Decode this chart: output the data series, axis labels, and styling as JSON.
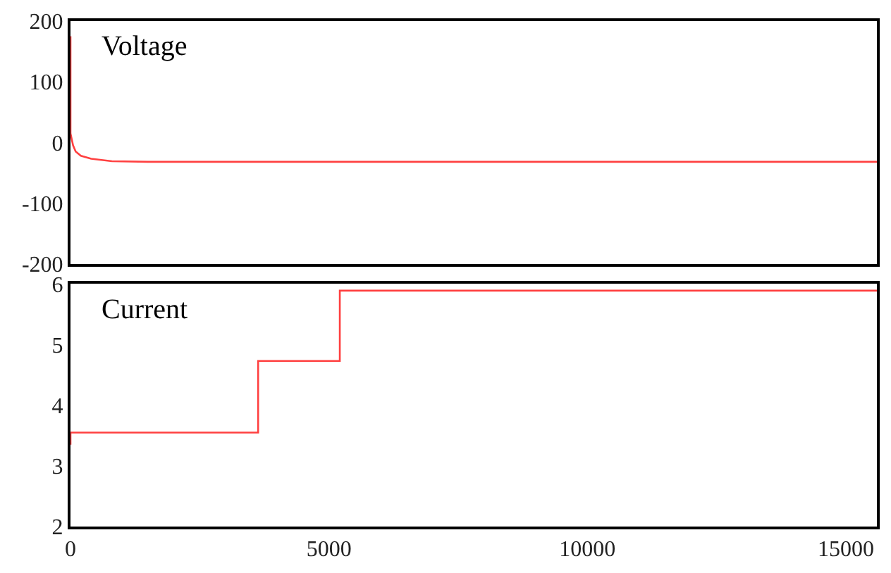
{
  "chart_data": [
    {
      "type": "line",
      "title": "Voltage",
      "x": [
        0,
        0,
        0,
        50,
        100,
        200,
        400,
        800,
        1500,
        15600
      ],
      "series": [
        {
          "color": "#ff4040",
          "values": [
            175,
            50,
            15,
            -5,
            -15,
            -22,
            -27,
            -31,
            -32,
            -32
          ]
        }
      ],
      "xlim": [
        0,
        15600
      ],
      "ylim": [
        -200,
        200
      ],
      "yticks": [
        -200,
        -100,
        0,
        100,
        200
      ],
      "tick_labels": "y"
    },
    {
      "type": "step",
      "title": "Current",
      "x": [
        0,
        0,
        3630,
        5210,
        15600
      ],
      "series": [
        {
          "color": "#ff4040",
          "values": [
            3.35,
            3.55,
            4.73,
            5.89,
            5.89
          ]
        }
      ],
      "xlim": [
        0,
        15600
      ],
      "xticks": [
        0,
        5000,
        10000,
        15000
      ],
      "ylim": [
        2,
        6
      ],
      "yticks": [
        2,
        3,
        4,
        5,
        6
      ]
    }
  ]
}
